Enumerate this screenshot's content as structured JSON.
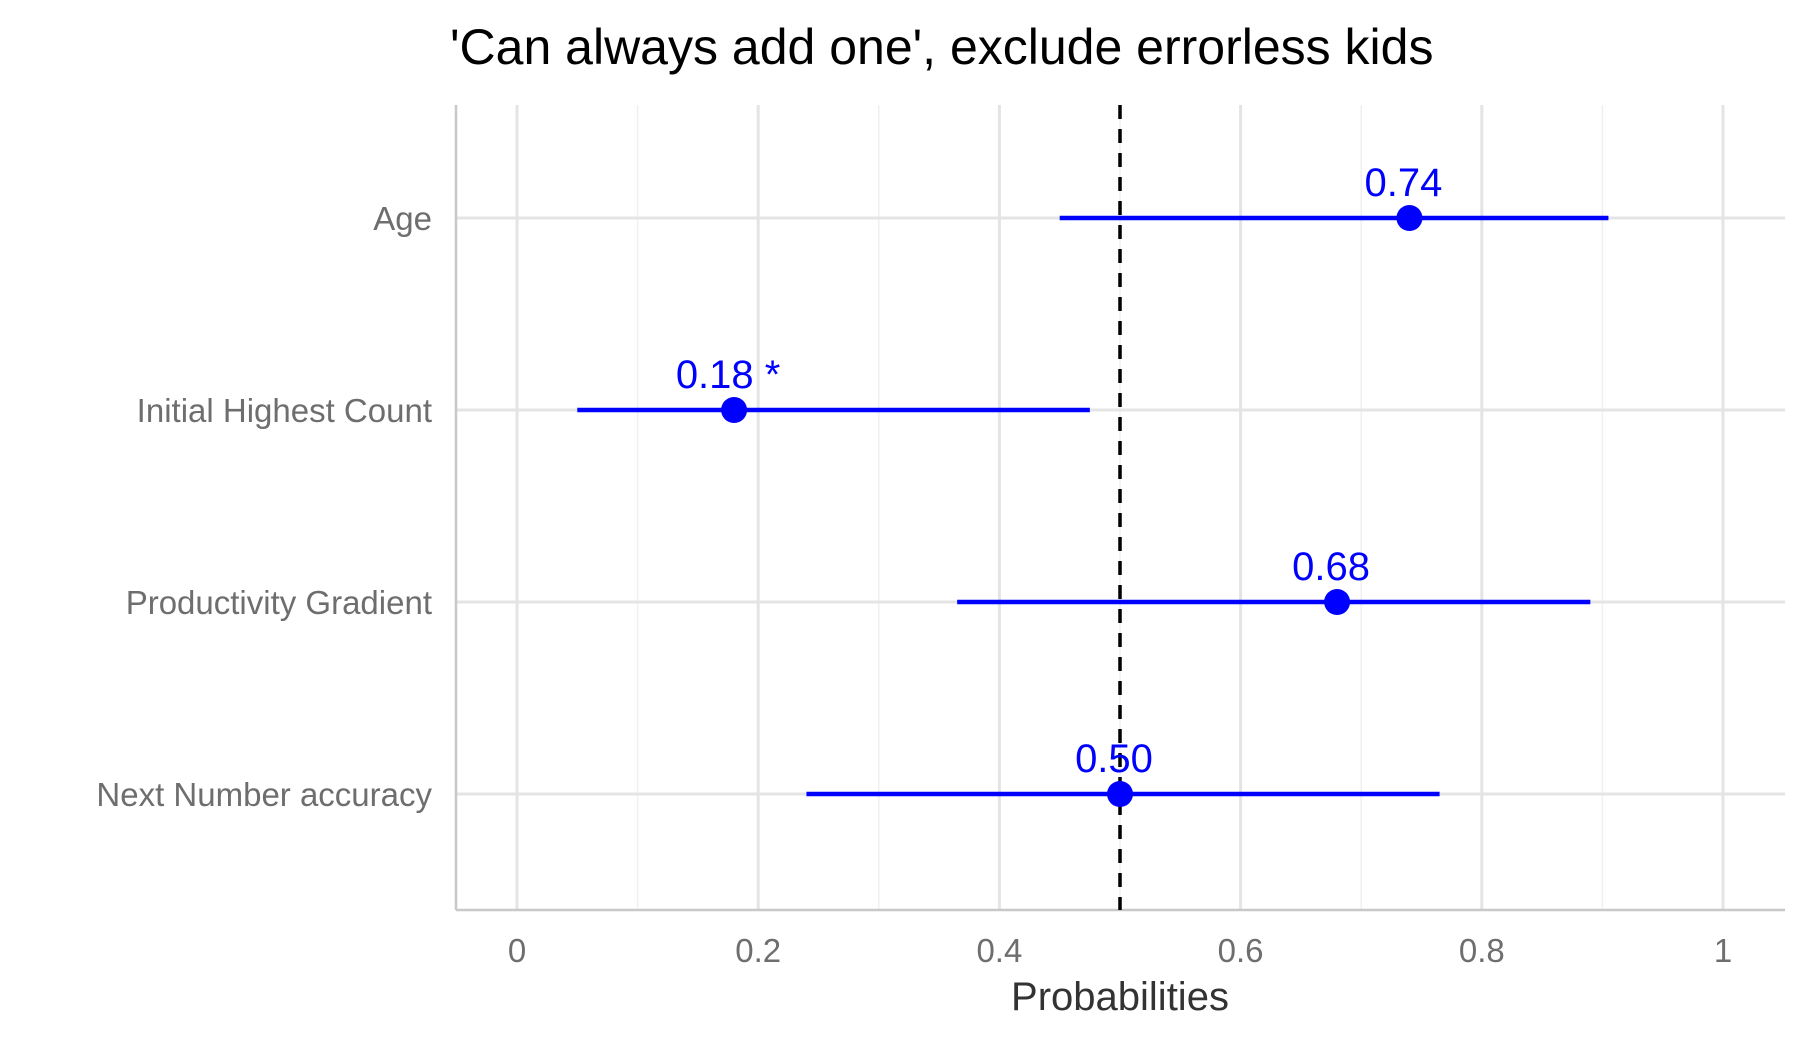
{
  "chart_data": {
    "type": "dot-interval",
    "title": "'Can always add one', exclude errorless kids",
    "xlabel": "Probabilities",
    "ylabel": "",
    "xlim": [
      -0.05,
      1.05
    ],
    "x_ticks": [
      0,
      0.2,
      0.4,
      0.6,
      0.8,
      1
    ],
    "x_tick_labels": [
      "0",
      "0.2",
      "0.4",
      "0.6",
      "0.8",
      "1"
    ],
    "reference_line": 0.5,
    "grid": true,
    "categories": [
      "Age",
      "Initial Highest Count",
      "Productivity Gradient",
      "Next Number accuracy"
    ],
    "estimates": [
      {
        "category": "Age",
        "value": 0.74,
        "lower": 0.45,
        "upper": 0.905,
        "label": "0.74"
      },
      {
        "category": "Initial Highest Count",
        "value": 0.18,
        "lower": 0.05,
        "upper": 0.475,
        "label": "0.18 *"
      },
      {
        "category": "Productivity Gradient",
        "value": 0.68,
        "lower": 0.365,
        "upper": 0.89,
        "label": "0.68"
      },
      {
        "category": "Next Number accuracy",
        "value": 0.5,
        "lower": 0.24,
        "upper": 0.765,
        "label": "0.50"
      }
    ],
    "colors": {
      "series": "#0000ff",
      "reference": "#000000",
      "grid_major": "#e4e4e4",
      "grid_minor": "#f0f0f0",
      "axis": "#c8c8c8"
    }
  }
}
